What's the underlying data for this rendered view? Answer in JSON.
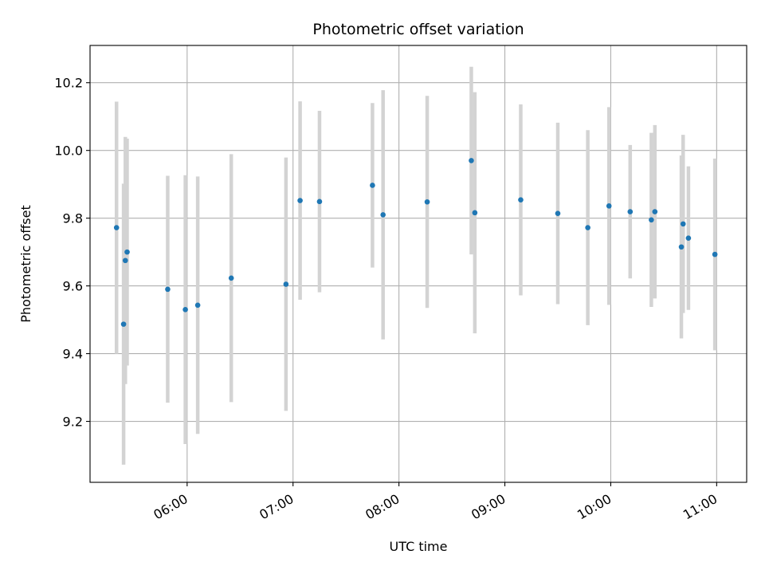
{
  "chart_data": {
    "type": "scatter",
    "title": "Photometric offset variation",
    "xlabel": "UTC time",
    "ylabel": "Photometric offset",
    "xlim": [
      "05:05",
      "11:17"
    ],
    "ylim": [
      9.02,
      10.31
    ],
    "x_ticks": [
      "06:00",
      "07:00",
      "08:00",
      "09:00",
      "10:00",
      "11:00"
    ],
    "y_ticks": [
      9.2,
      9.4,
      9.6,
      9.8,
      10.0,
      10.2
    ],
    "grid": true,
    "point_color": "#1f77b4",
    "errorbar_color": "#d3d3d3",
    "series": [
      {
        "points": [
          {
            "x": "05:20",
            "y": 9.772,
            "err": 0.372
          },
          {
            "x": "05:24",
            "y": 9.487,
            "err": 0.415
          },
          {
            "x": "05:25",
            "y": 9.675,
            "err": 0.365
          },
          {
            "x": "05:26",
            "y": 9.7,
            "err": 0.335
          },
          {
            "x": "05:49",
            "y": 9.59,
            "err": 0.335
          },
          {
            "x": "05:59",
            "y": 9.53,
            "err": 0.397
          },
          {
            "x": "06:06",
            "y": 9.543,
            "err": 0.38
          },
          {
            "x": "06:25",
            "y": 9.623,
            "err": 0.366
          },
          {
            "x": "06:56",
            "y": 9.605,
            "err": 0.374
          },
          {
            "x": "07:04",
            "y": 9.852,
            "err": 0.293
          },
          {
            "x": "07:15",
            "y": 9.849,
            "err": 0.268
          },
          {
            "x": "07:45",
            "y": 9.897,
            "err": 0.243
          },
          {
            "x": "07:51",
            "y": 9.81,
            "err": 0.368
          },
          {
            "x": "08:16",
            "y": 9.848,
            "err": 0.313
          },
          {
            "x": "08:41",
            "y": 9.97,
            "err": 0.277
          },
          {
            "x": "08:43",
            "y": 9.816,
            "err": 0.356
          },
          {
            "x": "09:09",
            "y": 9.854,
            "err": 0.282
          },
          {
            "x": "09:30",
            "y": 9.814,
            "err": 0.268
          },
          {
            "x": "09:47",
            "y": 9.772,
            "err": 0.288
          },
          {
            "x": "09:59",
            "y": 9.836,
            "err": 0.292
          },
          {
            "x": "10:11",
            "y": 9.819,
            "err": 0.197
          },
          {
            "x": "10:23",
            "y": 9.795,
            "err": 0.257
          },
          {
            "x": "10:25",
            "y": 9.819,
            "err": 0.256
          },
          {
            "x": "10:40",
            "y": 9.715,
            "err": 0.27
          },
          {
            "x": "10:41",
            "y": 9.783,
            "err": 0.263
          },
          {
            "x": "10:44",
            "y": 9.741,
            "err": 0.212
          },
          {
            "x": "10:59",
            "y": 9.693,
            "err": 0.283
          }
        ]
      }
    ]
  }
}
